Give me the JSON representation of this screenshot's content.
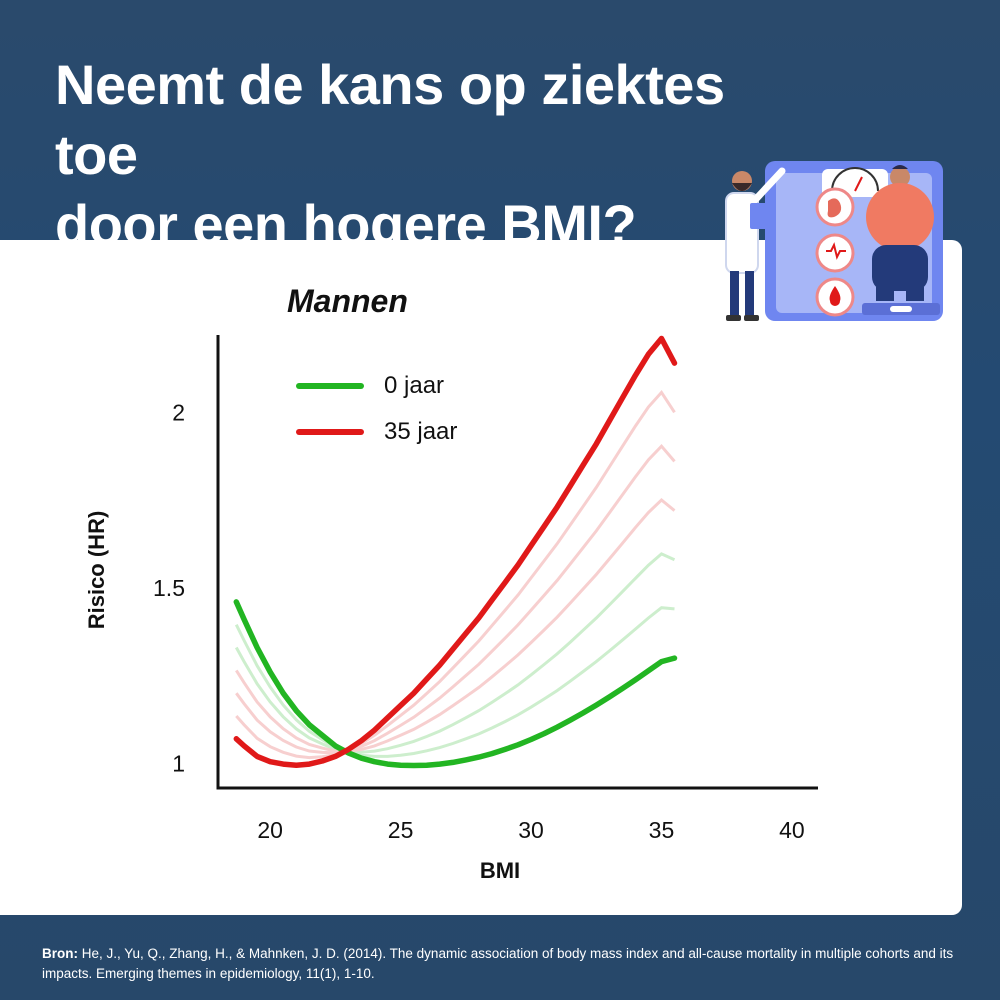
{
  "title": {
    "line1": "Neemt de kans op ziektes toe",
    "line2": "door een hogere BMI?"
  },
  "colors": {
    "background": "#27496b",
    "card": "#ffffff",
    "green": "#22b522",
    "red": "#e01919",
    "green_faint": "#cdeecd",
    "red_faint": "#f7cfcf"
  },
  "chart_data": {
    "type": "line",
    "title": "Mannen",
    "xlabel": "BMI",
    "ylabel": "Risico (HR)",
    "xlim": [
      18,
      41
    ],
    "ylim": [
      0.93,
      2.22
    ],
    "x_ticks": [
      20,
      25,
      30,
      35,
      40
    ],
    "y_ticks": [
      1,
      1.5,
      2
    ],
    "legend_position": "top-left",
    "series": [
      {
        "name": "0 jaar",
        "color": "#22b522",
        "x": [
          18.7,
          19,
          19.5,
          20,
          20.5,
          21,
          21.5,
          22,
          22.5,
          23,
          23.5,
          24,
          24.5,
          25,
          25.5,
          26,
          26.5,
          27,
          27.5,
          28,
          28.5,
          29,
          29.5,
          30,
          30.5,
          31,
          31.5,
          32,
          32.5,
          33,
          33.5,
          34,
          34.5,
          35,
          35.5
        ],
        "y": [
          1.46,
          1.41,
          1.33,
          1.26,
          1.2,
          1.15,
          1.11,
          1.08,
          1.05,
          1.03,
          1.015,
          1.005,
          0.998,
          0.995,
          0.994,
          0.995,
          0.998,
          1.003,
          1.01,
          1.018,
          1.028,
          1.04,
          1.053,
          1.068,
          1.085,
          1.103,
          1.123,
          1.144,
          1.166,
          1.189,
          1.213,
          1.238,
          1.264,
          1.29,
          1.3
        ]
      },
      {
        "name": "35 jaar",
        "color": "#e01919",
        "x": [
          18.7,
          19,
          19.5,
          20,
          20.5,
          21,
          21.5,
          22,
          22.5,
          23,
          23.5,
          24,
          24.5,
          25,
          25.5,
          26,
          26.5,
          27,
          27.5,
          28,
          28.5,
          29,
          29.5,
          30,
          30.5,
          31,
          31.5,
          32,
          32.5,
          33,
          33.5,
          34,
          34.5,
          35,
          35.5
        ],
        "y": [
          1.07,
          1.05,
          1.02,
          1.005,
          0.998,
          0.995,
          0.998,
          1.007,
          1.02,
          1.04,
          1.065,
          1.095,
          1.13,
          1.165,
          1.2,
          1.24,
          1.28,
          1.325,
          1.37,
          1.415,
          1.465,
          1.515,
          1.565,
          1.62,
          1.675,
          1.73,
          1.79,
          1.85,
          1.91,
          1.975,
          2.04,
          2.105,
          2.165,
          2.21,
          2.14
        ]
      }
    ]
  },
  "source": {
    "prefix": "Bron:",
    "text": "He, J., Yu, Q., Zhang, H., & Mahnken, J. D. (2014). The dynamic association of body mass index and all-cause mortality in multiple cohorts and its impacts. Emerging themes in epidemiology, 11(1), 1-10."
  },
  "illustration": {
    "icon": "doctor-scale-icon"
  }
}
